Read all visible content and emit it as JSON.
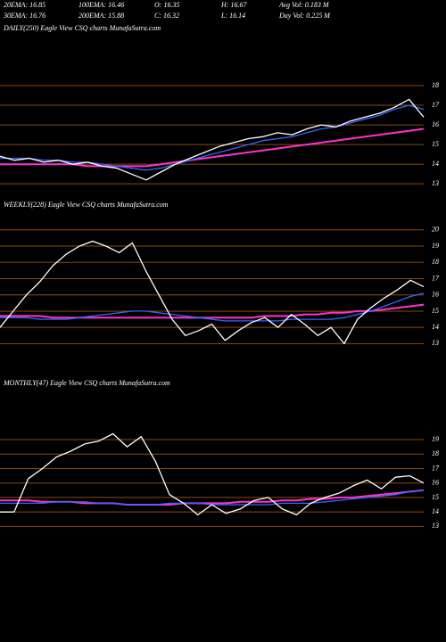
{
  "header": {
    "rows": [
      [
        "20EMA: 16.85",
        "100EMA: 16.46",
        "O: 16.35",
        "H: 16.67",
        "Avg Vol: 0.183 M"
      ],
      [
        "30EMA: 16.76",
        "200EMA: 15.88",
        "C: 16.32",
        "L: 16.14",
        "Day Vol: 0.225 M"
      ]
    ]
  },
  "chart_data": [
    {
      "type": "line",
      "title": "DAILY(250) Eagle  View  CSQ charts MunafaSutra.com",
      "ylim": [
        12.6,
        18.5
      ],
      "yticks": [
        13,
        14,
        15,
        16,
        17,
        18
      ],
      "grid": true,
      "grid_color": "#8a4a10",
      "series": [
        {
          "color": "#ff33cc",
          "values": [
            14.0,
            14.0,
            14.0,
            14.0,
            14.0,
            14.0,
            13.9,
            13.9,
            13.9,
            13.9,
            13.9,
            14.0,
            14.1,
            14.2,
            14.3,
            14.4,
            14.5,
            14.6,
            14.7,
            14.8,
            14.9,
            15.0,
            15.1,
            15.2,
            15.3,
            15.4,
            15.5,
            15.6,
            15.7,
            15.8
          ]
        },
        {
          "color": "#3366ff",
          "values": [
            14.3,
            14.3,
            14.3,
            14.2,
            14.2,
            14.1,
            14.1,
            14.0,
            13.9,
            13.8,
            13.7,
            13.8,
            14.0,
            14.2,
            14.4,
            14.6,
            14.8,
            15.0,
            15.2,
            15.3,
            15.4,
            15.6,
            15.8,
            15.9,
            16.1,
            16.3,
            16.5,
            16.8,
            17.0,
            16.8
          ]
        },
        {
          "color": "#ffffff",
          "values": [
            14.4,
            14.2,
            14.3,
            14.1,
            14.2,
            14.0,
            14.1,
            13.9,
            13.8,
            13.5,
            13.2,
            13.6,
            14.0,
            14.3,
            14.6,
            14.9,
            15.1,
            15.3,
            15.4,
            15.6,
            15.5,
            15.8,
            16.0,
            15.9,
            16.2,
            16.4,
            16.6,
            16.9,
            17.3,
            16.4
          ]
        }
      ]
    },
    {
      "type": "line",
      "title": "WEEKLY(228) Eagle  View  CSQ charts MunafaSutra.com",
      "ylim": [
        12.2,
        20.7
      ],
      "yticks": [
        13,
        14,
        15,
        16,
        17,
        18,
        19,
        20
      ],
      "grid": true,
      "grid_color": "#8a4a10",
      "series": [
        {
          "color": "#ff33cc",
          "values": [
            14.7,
            14.7,
            14.7,
            14.7,
            14.6,
            14.6,
            14.6,
            14.6,
            14.6,
            14.6,
            14.6,
            14.6,
            14.6,
            14.6,
            14.6,
            14.6,
            14.6,
            14.6,
            14.6,
            14.6,
            14.7,
            14.7,
            14.7,
            14.8,
            14.8,
            14.9,
            14.9,
            15.0,
            15.0,
            15.1,
            15.2,
            15.3,
            15.4
          ]
        },
        {
          "color": "#3366ff",
          "values": [
            14.6,
            14.6,
            14.6,
            14.5,
            14.5,
            14.5,
            14.6,
            14.7,
            14.8,
            14.9,
            15.0,
            15.0,
            14.9,
            14.8,
            14.7,
            14.6,
            14.5,
            14.4,
            14.4,
            14.4,
            14.4,
            14.4,
            14.5,
            14.5,
            14.5,
            14.5,
            14.6,
            14.8,
            15.0,
            15.3,
            15.6,
            15.9,
            16.1
          ]
        },
        {
          "color": "#ffffff",
          "values": [
            14.0,
            15.0,
            16.0,
            16.8,
            17.8,
            18.5,
            19.0,
            19.3,
            19.0,
            18.6,
            19.2,
            17.5,
            16.0,
            14.5,
            13.5,
            13.8,
            14.2,
            13.2,
            13.8,
            14.3,
            14.6,
            14.0,
            14.8,
            14.2,
            13.5,
            14.0,
            13.0,
            14.5,
            15.2,
            15.8,
            16.3,
            16.9,
            16.5
          ]
        }
      ]
    },
    {
      "type": "line",
      "title": "MONTHLY(47) Eagle  View  CSQ charts MunafaSutra.com",
      "ylim": [
        12.1,
        19.8
      ],
      "yticks": [
        13,
        14,
        15,
        16,
        17,
        18,
        19
      ],
      "grid": true,
      "grid_color": "#8a4a10",
      "series": [
        {
          "color": "#ff33cc",
          "values": [
            14.8,
            14.8,
            14.8,
            14.7,
            14.7,
            14.7,
            14.6,
            14.6,
            14.6,
            14.5,
            14.5,
            14.5,
            14.5,
            14.6,
            14.6,
            14.6,
            14.6,
            14.7,
            14.7,
            14.7,
            14.8,
            14.8,
            14.9,
            14.9,
            15.0,
            15.0,
            15.1,
            15.2,
            15.3,
            15.4,
            15.5
          ]
        },
        {
          "color": "#3366ff",
          "values": [
            14.6,
            14.6,
            14.6,
            14.6,
            14.7,
            14.7,
            14.7,
            14.6,
            14.6,
            14.5,
            14.5,
            14.5,
            14.6,
            14.6,
            14.6,
            14.5,
            14.5,
            14.5,
            14.5,
            14.5,
            14.6,
            14.6,
            14.6,
            14.7,
            14.8,
            14.9,
            15.0,
            15.1,
            15.2,
            15.4,
            15.5
          ]
        },
        {
          "color": "#ffffff",
          "values": [
            14.0,
            14.0,
            16.3,
            17.0,
            17.8,
            18.2,
            18.7,
            18.9,
            19.4,
            18.5,
            19.2,
            17.5,
            15.2,
            14.6,
            13.8,
            14.5,
            13.9,
            14.2,
            14.8,
            15.0,
            14.2,
            13.8,
            14.6,
            15.0,
            15.3,
            15.8,
            16.2,
            15.6,
            16.4,
            16.5,
            16.0
          ]
        }
      ]
    }
  ]
}
